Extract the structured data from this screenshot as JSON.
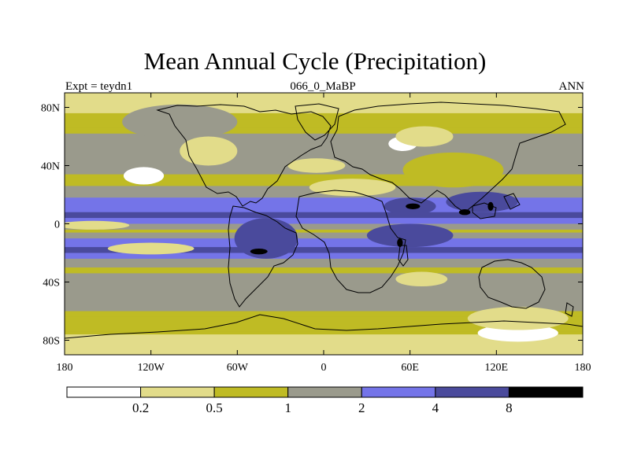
{
  "title": "Mean Annual Cycle (Precipitation)",
  "subtitle_left": "Expt = teydn1",
  "subtitle_center": "066_0_MaBP",
  "subtitle_right": "ANN",
  "chart_data": {
    "type": "heatmap",
    "title": "Mean Annual Cycle (Precipitation)",
    "xlabel": "",
    "ylabel": "",
    "xlim": [
      -180,
      180
    ],
    "ylim": [
      -90,
      90
    ],
    "x_ticks": [
      {
        "value": -180,
        "label": "180"
      },
      {
        "value": -120,
        "label": "120W"
      },
      {
        "value": -60,
        "label": "60W"
      },
      {
        "value": 0,
        "label": "0"
      },
      {
        "value": 60,
        "label": "60E"
      },
      {
        "value": 120,
        "label": "120E"
      },
      {
        "value": 180,
        "label": "180"
      }
    ],
    "y_ticks": [
      {
        "value": 80,
        "label": "80N"
      },
      {
        "value": 40,
        "label": "40N"
      },
      {
        "value": 0,
        "label": "0"
      },
      {
        "value": -40,
        "label": "40S"
      },
      {
        "value": -80,
        "label": "80S"
      }
    ],
    "contour_levels": [
      0.2,
      0.5,
      1,
      2,
      4,
      8
    ],
    "colorbar_labels": [
      "0.2",
      "0.5",
      "1",
      "2",
      "4",
      "8"
    ],
    "colors": [
      "#ffffff",
      "#e2dc8a",
      "#bfbb24",
      "#9a9a8c",
      "#7474e8",
      "#4a4a9c",
      "#000000"
    ],
    "zonal_profile": [
      {
        "lat": 90,
        "value": 0.3
      },
      {
        "lat": 80,
        "value": 0.45
      },
      {
        "lat": 70,
        "value": 0.6
      },
      {
        "lat": 60,
        "value": 1.1
      },
      {
        "lat": 50,
        "value": 1.6
      },
      {
        "lat": 40,
        "value": 1.4
      },
      {
        "lat": 30,
        "value": 0.6
      },
      {
        "lat": 20,
        "value": 1.8
      },
      {
        "lat": 12,
        "value": 3.2
      },
      {
        "lat": 5,
        "value": 5.0
      },
      {
        "lat": 0,
        "value": 2.2
      },
      {
        "lat": -5,
        "value": 0.7
      },
      {
        "lat": -12,
        "value": 2.6
      },
      {
        "lat": -18,
        "value": 4.5
      },
      {
        "lat": -25,
        "value": 1.4
      },
      {
        "lat": -32,
        "value": 0.8
      },
      {
        "lat": -40,
        "value": 1.6
      },
      {
        "lat": -50,
        "value": 1.8
      },
      {
        "lat": -60,
        "value": 1.0
      },
      {
        "lat": -70,
        "value": 0.6
      },
      {
        "lat": -80,
        "value": 0.4
      },
      {
        "lat": -90,
        "value": 0.3
      }
    ],
    "blobs": [
      {
        "lon": -125,
        "lat": 33,
        "rx": 14,
        "ry": 6,
        "value": 0.1
      },
      {
        "lon": -160,
        "lat": -1,
        "rx": 25,
        "ry": 3,
        "value": 0.35
      },
      {
        "lon": -120,
        "lat": -17,
        "rx": 30,
        "ry": 4,
        "value": 0.4
      },
      {
        "lon": 55,
        "lat": 55,
        "rx": 10,
        "ry": 5,
        "value": 0.1
      },
      {
        "lon": 70,
        "lat": 60,
        "rx": 20,
        "ry": 7,
        "value": 0.35
      },
      {
        "lon": -5,
        "lat": 40,
        "rx": 20,
        "ry": 5,
        "value": 0.4
      },
      {
        "lon": 68,
        "lat": -38,
        "rx": 18,
        "ry": 5,
        "value": 0.4
      },
      {
        "lon": 135,
        "lat": -75,
        "rx": 28,
        "ry": 6,
        "value": 0.1
      },
      {
        "lon": 135,
        "lat": -65,
        "rx": 35,
        "ry": 8,
        "value": 0.35
      },
      {
        "lon": -100,
        "lat": 70,
        "rx": 40,
        "ry": 12,
        "value": 1.6
      },
      {
        "lon": -80,
        "lat": 50,
        "rx": 20,
        "ry": 10,
        "value": 0.45
      },
      {
        "lon": 90,
        "lat": 37,
        "rx": 35,
        "ry": 12,
        "value": 0.7
      },
      {
        "lon": 20,
        "lat": 25,
        "rx": 30,
        "ry": 6,
        "value": 0.45
      },
      {
        "lon": -40,
        "lat": -10,
        "rx": 22,
        "ry": 14,
        "value": 4.5
      },
      {
        "lon": 60,
        "lat": -8,
        "rx": 30,
        "ry": 8,
        "value": 5.0
      },
      {
        "lon": 60,
        "lat": 12,
        "rx": 18,
        "ry": 6,
        "value": 5.5
      },
      {
        "lon": 110,
        "lat": 15,
        "rx": 25,
        "ry": 7,
        "value": 5.0
      },
      {
        "lon": -45,
        "lat": -19,
        "rx": 6,
        "ry": 2,
        "value": 9.0
      },
      {
        "lon": 53,
        "lat": -13,
        "rx": 2,
        "ry": 3,
        "value": 9.0
      },
      {
        "lon": 62,
        "lat": 12,
        "rx": 5,
        "ry": 2,
        "value": 9.0
      },
      {
        "lon": 116,
        "lat": 12,
        "rx": 2,
        "ry": 3,
        "value": 9.0
      },
      {
        "lon": 98,
        "lat": 8,
        "rx": 4,
        "ry": 2,
        "value": 9.0
      }
    ]
  }
}
